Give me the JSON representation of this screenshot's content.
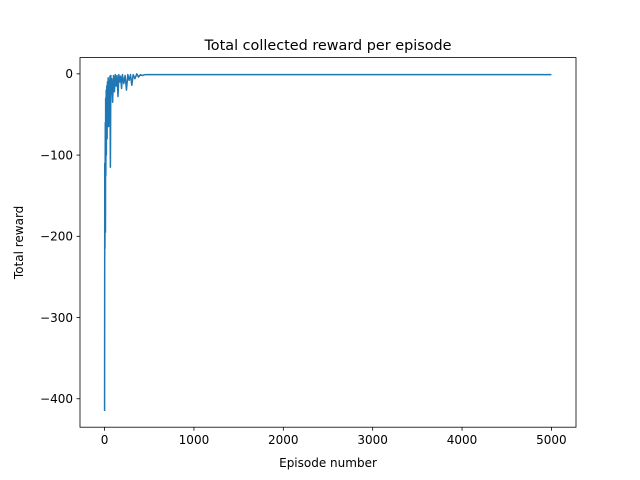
{
  "chart_data": {
    "type": "line",
    "title": "Total collected reward per episode",
    "xlabel": "Episode number",
    "ylabel": "Total reward",
    "xlim": [
      -275,
      5275
    ],
    "ylim": [
      -435,
      20
    ],
    "xticks": [
      0,
      1000,
      2000,
      3000,
      4000,
      5000
    ],
    "yticks": [
      -400,
      -300,
      -200,
      -100,
      0
    ],
    "xtick_labels": [
      "0",
      "1000",
      "2000",
      "3000",
      "4000",
      "5000"
    ],
    "ytick_labels": [
      "−400",
      "−300",
      "−200",
      "−100",
      "0"
    ],
    "grid": false,
    "legend": "none",
    "series": [
      {
        "color": "#1f77b4",
        "x": [
          0,
          2,
          4,
          6,
          8,
          10,
          12,
          14,
          16,
          18,
          20,
          22,
          25,
          28,
          32,
          36,
          40,
          45,
          50,
          55,
          60,
          65,
          70,
          75,
          80,
          90,
          100,
          110,
          120,
          130,
          140,
          150,
          160,
          170,
          180,
          190,
          200,
          215,
          230,
          245,
          260,
          275,
          290,
          305,
          320,
          340,
          360,
          380,
          400,
          420,
          450,
          500,
          1000,
          2000,
          3000,
          4000,
          5000
        ],
        "y": [
          -415,
          -110,
          -215,
          -135,
          -60,
          -195,
          -30,
          -125,
          -70,
          -20,
          -100,
          -40,
          -15,
          -80,
          -10,
          -55,
          -5,
          -65,
          -8,
          -45,
          -3,
          -115,
          -2,
          -25,
          -6,
          -35,
          -2,
          -22,
          -1,
          -15,
          -2,
          -28,
          -1,
          -10,
          -3,
          -18,
          -1,
          -12,
          -2,
          -20,
          -1,
          -8,
          -1,
          -14,
          -1,
          -6,
          0,
          -4,
          -1,
          -2,
          -1,
          -1,
          -1,
          -1,
          -1,
          -1,
          -1
        ]
      }
    ]
  }
}
